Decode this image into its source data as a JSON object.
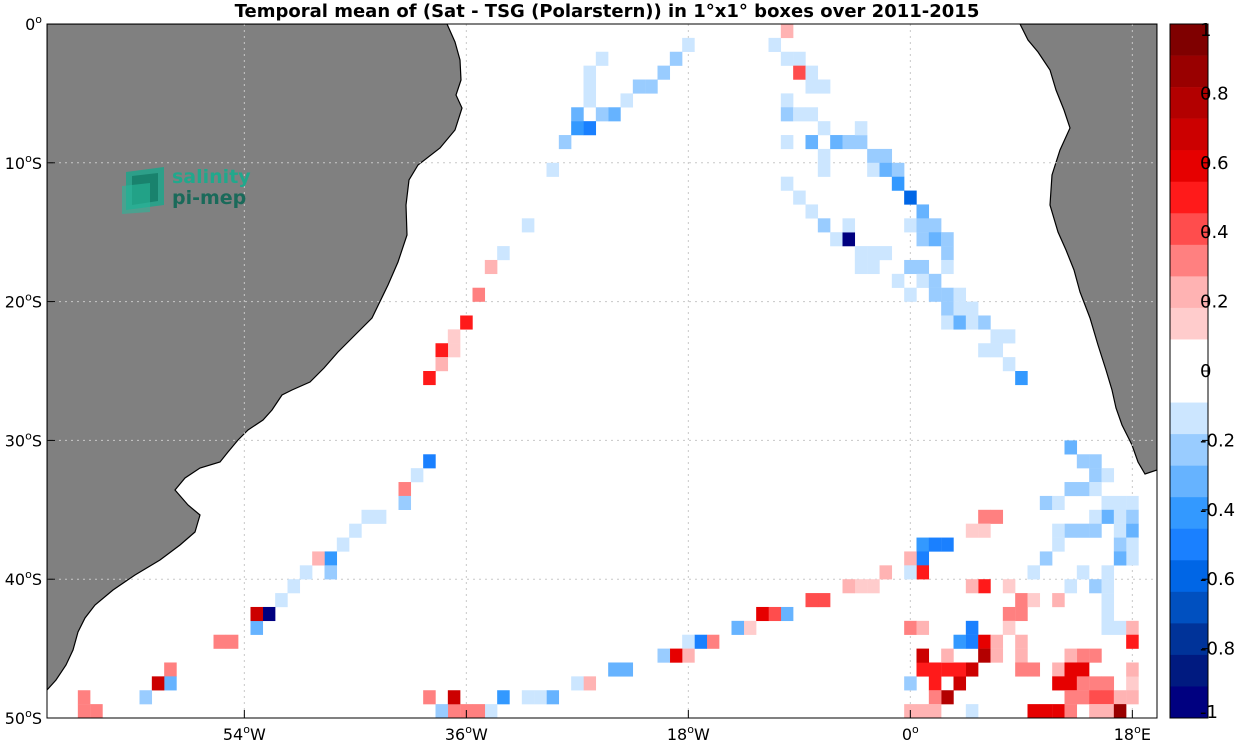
{
  "chart_data": {
    "type": "heatmap",
    "title": "Temporal mean of (Sat - TSG (Polarstern)) in 1°x1° boxes over 2011-2015",
    "xlabel": "",
    "ylabel": "",
    "xlim": [
      -70,
      20
    ],
    "ylim": [
      -50,
      0
    ],
    "grid": true,
    "x_ticks": [
      {
        "value": -54,
        "label": "54",
        "deg": "o",
        "hemi": "W"
      },
      {
        "value": -36,
        "label": "36",
        "deg": "o",
        "hemi": "W"
      },
      {
        "value": -18,
        "label": "18",
        "deg": "o",
        "hemi": "W"
      },
      {
        "value": 0,
        "label": "0",
        "deg": "o",
        "hemi": ""
      },
      {
        "value": 18,
        "label": "18",
        "deg": "o",
        "hemi": "E"
      }
    ],
    "y_ticks": [
      {
        "value": 0,
        "label": "0",
        "deg": "o",
        "hemi": ""
      },
      {
        "value": -10,
        "label": "10",
        "deg": "o",
        "hemi": "S"
      },
      {
        "value": -20,
        "label": "20",
        "deg": "o",
        "hemi": "S"
      },
      {
        "value": -30,
        "label": "30",
        "deg": "o",
        "hemi": "S"
      },
      {
        "value": -40,
        "label": "40",
        "deg": "o",
        "hemi": "S"
      },
      {
        "value": -50,
        "label": "50",
        "deg": "o",
        "hemi": "S"
      }
    ],
    "colorbar": {
      "range": [
        -1,
        1
      ],
      "ticks": [
        1,
        0.8,
        0.6,
        0.4,
        0.2,
        0,
        -0.2,
        -0.4,
        -0.6,
        -0.8,
        -1
      ],
      "tick_labels": [
        "1",
        "0.8",
        "0.6",
        "0.4",
        "0.2",
        "0",
        "-0.2",
        "-0.4",
        "-0.6",
        "-0.8",
        "-1"
      ],
      "colors_top_to_bottom": [
        "#7f0000",
        "#990000",
        "#b30000",
        "#cc0000",
        "#e60000",
        "#ff1a1a",
        "#ff4d4d",
        "#ff8080",
        "#ffb3b3",
        "#ffcccc",
        "#ffffff",
        "#ffffff",
        "#cce6ff",
        "#99ccff",
        "#66b3ff",
        "#3399ff",
        "#1a80ff",
        "#0066e6",
        "#0050c0",
        "#003399",
        "#001a80",
        "#000080"
      ]
    },
    "logo": {
      "line1": "salinity",
      "line2": "pi-mep"
    },
    "colors": {
      "land": "#808080",
      "coast": "#000000",
      "ocean": "#ffffff",
      "grid": "#c8c8c8"
    },
    "cells": [
      [
        -25,
        -2.5,
        -0.1
      ],
      [
        -26,
        -3.5,
        -0.1
      ],
      [
        -26,
        -4.5,
        -0.1
      ],
      [
        -26,
        -5.5,
        -0.1
      ],
      [
        -27,
        -6.5,
        -0.3
      ],
      [
        -28,
        -8.5,
        -0.2
      ],
      [
        -29,
        -10.5,
        -0.1
      ],
      [
        -31,
        -14.5,
        -0.1
      ],
      [
        -33,
        -16.5,
        -0.1
      ],
      [
        -34,
        -17.5,
        0.2
      ],
      [
        -35,
        -19.5,
        0.3
      ],
      [
        -36,
        -21.5,
        0.5
      ],
      [
        -37,
        -22.5,
        0.1
      ],
      [
        -37,
        -23.5,
        0.1
      ],
      [
        -38,
        -23.5,
        0.5
      ],
      [
        -38,
        -24.5,
        0.2
      ],
      [
        -39,
        -25.5,
        0.5
      ],
      [
        -39,
        -31.5,
        -0.5
      ],
      [
        -40,
        -32.5,
        -0.1
      ],
      [
        -41,
        -33.5,
        0.3
      ],
      [
        -41,
        -34.5,
        -0.2
      ],
      [
        -43,
        -35.5,
        -0.1
      ],
      [
        -44,
        -35.5,
        -0.1
      ],
      [
        -45,
        -36.5,
        -0.1
      ],
      [
        -46,
        -37.5,
        -0.1
      ],
      [
        -47,
        -38.5,
        -0.4
      ],
      [
        -48,
        -38.5,
        0.2
      ],
      [
        -47,
        -39.5,
        -0.2
      ],
      [
        -49,
        -39.5,
        -0.1
      ],
      [
        -50,
        -40.5,
        -0.1
      ],
      [
        -51,
        -41.5,
        -0.1
      ],
      [
        -52,
        -42.5,
        -1.0
      ],
      [
        -53,
        -43.5,
        -0.3
      ],
      [
        -53,
        -42.5,
        0.7
      ],
      [
        -55,
        -44.5,
        0.3
      ],
      [
        -56,
        -44.5,
        0.3
      ],
      [
        -60,
        -46.5,
        0.3
      ],
      [
        -60,
        -47.5,
        -0.3
      ],
      [
        -61,
        -47.5,
        0.7
      ],
      [
        -62,
        -48.5,
        -0.2
      ],
      [
        -66,
        -49.5,
        0.3
      ],
      [
        -67,
        -49.5,
        0.3
      ],
      [
        -67,
        -48.5,
        0.3
      ],
      [
        -18,
        -1.5,
        -0.1
      ],
      [
        -19,
        -2.5,
        -0.2
      ],
      [
        -20,
        -3.5,
        -0.2
      ],
      [
        -21,
        -4.5,
        -0.2
      ],
      [
        -22,
        -4.5,
        -0.2
      ],
      [
        -23,
        -5.5,
        -0.1
      ],
      [
        -24,
        -6.5,
        -0.3
      ],
      [
        -25,
        -6.5,
        -0.2
      ],
      [
        -26,
        -7.5,
        -0.5
      ],
      [
        -27,
        -7.5,
        -0.4
      ],
      [
        -10,
        -0.5,
        0.2
      ],
      [
        -11,
        -1.5,
        -0.1
      ],
      [
        -10,
        -2.5,
        -0.1
      ],
      [
        -9,
        -2.5,
        -0.1
      ],
      [
        -9,
        -3.5,
        0.4
      ],
      [
        -8,
        -4.5,
        -0.1
      ],
      [
        -8,
        -3.5,
        -0.1
      ],
      [
        -7,
        -4.5,
        -0.1
      ],
      [
        -10,
        -5.5,
        -0.1
      ],
      [
        -10,
        -6.5,
        -0.2
      ],
      [
        -9,
        -6.5,
        -0.1
      ],
      [
        -8,
        -6.5,
        -0.1
      ],
      [
        -7,
        -7.5,
        -0.1
      ],
      [
        -10,
        -8.5,
        -0.1
      ],
      [
        -8,
        -8.5,
        -0.3
      ],
      [
        -7,
        -9.5,
        -0.1
      ],
      [
        -7,
        -10.5,
        -0.1
      ],
      [
        -6,
        -8.5,
        -0.3
      ],
      [
        -5,
        -8.5,
        -0.2
      ],
      [
        -4,
        -8.5,
        -0.2
      ],
      [
        -4,
        -7.5,
        -0.1
      ],
      [
        -3,
        -9.5,
        -0.2
      ],
      [
        -3,
        -10.5,
        -0.1
      ],
      [
        -2,
        -9.5,
        -0.2
      ],
      [
        -2,
        -10.5,
        -0.3
      ],
      [
        -1,
        -10.5,
        -0.2
      ],
      [
        -1,
        -11.5,
        -0.4
      ],
      [
        0,
        -12.5,
        -0.6
      ],
      [
        -10,
        -11.5,
        -0.1
      ],
      [
        -9,
        -12.5,
        -0.1
      ],
      [
        -8,
        -13.5,
        -0.1
      ],
      [
        -7,
        -14.5,
        -0.2
      ],
      [
        -6,
        -15.5,
        -0.1
      ],
      [
        -5,
        -15.5,
        -1.0
      ],
      [
        -4,
        -16.5,
        -0.1
      ],
      [
        -3,
        -17.5,
        -0.1
      ],
      [
        -4,
        -17.5,
        -0.1
      ],
      [
        -5,
        -14.5,
        -0.1
      ],
      [
        0,
        -14.5,
        -0.1
      ],
      [
        1,
        -13.5,
        -0.3
      ],
      [
        1,
        -14.5,
        -0.2
      ],
      [
        1,
        -15.5,
        -0.2
      ],
      [
        2,
        -14.5,
        -0.2
      ],
      [
        2,
        -15.5,
        -0.3
      ],
      [
        3,
        -15.5,
        -0.2
      ],
      [
        3,
        -16.5,
        -0.2
      ],
      [
        1,
        -17.5,
        -0.2
      ],
      [
        1,
        -18.5,
        -0.1
      ],
      [
        2,
        -18.5,
        -0.2
      ],
      [
        2,
        -19.5,
        -0.2
      ],
      [
        3,
        -19.5,
        -0.2
      ],
      [
        3,
        -20.5,
        -0.2
      ],
      [
        4,
        -19.5,
        -0.1
      ],
      [
        4,
        -20.5,
        -0.1
      ],
      [
        3,
        -21.5,
        -0.1
      ],
      [
        4,
        -21.5,
        -0.3
      ],
      [
        5,
        -20.5,
        -0.1
      ],
      [
        5,
        -21.5,
        -0.1
      ],
      [
        6,
        -21.5,
        -0.2
      ],
      [
        7,
        -22.5,
        -0.1
      ],
      [
        8,
        -22.5,
        -0.1
      ],
      [
        6,
        -23.5,
        -0.1
      ],
      [
        7,
        -23.5,
        -0.1
      ],
      [
        8,
        -24.5,
        -0.1
      ],
      [
        9,
        -25.5,
        -0.4
      ],
      [
        0,
        -17.5,
        -0.2
      ],
      [
        -1,
        -18.5,
        -0.1
      ],
      [
        0,
        -19.5,
        -0.1
      ],
      [
        3,
        -17.5,
        -0.1
      ],
      [
        -2,
        -16.5,
        -0.1
      ],
      [
        -3,
        -16.5,
        -0.1
      ],
      [
        13,
        -30.5,
        -0.3
      ],
      [
        14,
        -31.5,
        -0.2
      ],
      [
        15,
        -31.5,
        -0.2
      ],
      [
        15,
        -32.5,
        -0.2
      ],
      [
        15,
        -33.5,
        -0.1
      ],
      [
        16,
        -32.5,
        -0.1
      ],
      [
        13,
        -33.5,
        -0.2
      ],
      [
        14,
        -33.5,
        -0.2
      ],
      [
        16,
        -34.5,
        -0.1
      ],
      [
        11,
        -34.5,
        -0.2
      ],
      [
        12,
        -34.5,
        -0.1
      ],
      [
        16,
        -35.5,
        -0.3
      ],
      [
        17,
        -34.5,
        -0.1
      ],
      [
        17,
        -35.5,
        -0.1
      ],
      [
        18,
        -34.5,
        -0.1
      ],
      [
        18,
        -35.5,
        -0.2
      ],
      [
        15,
        -35.5,
        -0.1
      ],
      [
        13,
        -36.5,
        -0.2
      ],
      [
        14,
        -36.5,
        -0.2
      ],
      [
        15,
        -36.5,
        -0.2
      ],
      [
        17,
        -36.5,
        -0.1
      ],
      [
        18,
        -36.5,
        -0.3
      ],
      [
        18,
        -37.5,
        -0.1
      ],
      [
        12,
        -36.5,
        -0.1
      ],
      [
        17,
        -37.5,
        -0.2
      ],
      [
        18,
        -38.5,
        -0.1
      ],
      [
        17,
        -38.5,
        -0.3
      ],
      [
        11,
        -38.5,
        -0.2
      ],
      [
        12,
        -37.5,
        -0.1
      ],
      [
        10,
        -39.5,
        -0.1
      ],
      [
        14,
        -39.5,
        -0.1
      ],
      [
        15,
        -40.5,
        -0.2
      ],
      [
        16,
        -39.5,
        -0.1
      ],
      [
        16,
        -40.5,
        -0.1
      ],
      [
        16,
        -41.5,
        -0.1
      ],
      [
        16,
        -42.5,
        -0.1
      ],
      [
        16,
        -43.5,
        -0.1
      ],
      [
        17,
        -43.5,
        -0.1
      ],
      [
        18,
        -43.5,
        0.2
      ],
      [
        18,
        -44.5,
        0.5
      ],
      [
        7,
        -35.5,
        0.3
      ],
      [
        6,
        -35.5,
        0.3
      ],
      [
        5,
        -36.5,
        0.1
      ],
      [
        6,
        -36.5,
        0.1
      ],
      [
        1,
        -37.5,
        -0.4
      ],
      [
        1,
        -38.5,
        -0.5
      ],
      [
        2,
        -37.5,
        -0.5
      ],
      [
        3,
        -37.5,
        -0.5
      ],
      [
        0,
        -38.5,
        0.2
      ],
      [
        1,
        -39.5,
        0.5
      ],
      [
        0,
        -39.5,
        -0.1
      ],
      [
        -2,
        -39.5,
        0.2
      ],
      [
        -3,
        -40.5,
        0.1
      ],
      [
        -4,
        -40.5,
        0.1
      ],
      [
        -5,
        -40.5,
        0.2
      ],
      [
        -7,
        -41.5,
        0.4
      ],
      [
        -8,
        -41.5,
        0.4
      ],
      [
        -10,
        -42.5,
        -0.3
      ],
      [
        -11,
        -42.5,
        0.4
      ],
      [
        -12,
        -42.5,
        0.6
      ],
      [
        -13,
        -43.5,
        0.1
      ],
      [
        -14,
        -43.5,
        -0.3
      ],
      [
        -16,
        -44.5,
        0.3
      ],
      [
        -17,
        -44.5,
        -0.5
      ],
      [
        -18,
        -44.5,
        -0.1
      ],
      [
        -18,
        -45.5,
        0.2
      ],
      [
        -19,
        -45.5,
        0.6
      ],
      [
        -20,
        -45.5,
        -0.2
      ],
      [
        -23,
        -46.5,
        -0.3
      ],
      [
        -24,
        -46.5,
        -0.3
      ],
      [
        -26,
        -47.5,
        0.2
      ],
      [
        -27,
        -47.5,
        -0.1
      ],
      [
        -29,
        -48.5,
        -0.3
      ],
      [
        -30,
        -48.5,
        -0.1
      ],
      [
        -31,
        -48.5,
        -0.1
      ],
      [
        -33,
        -48.5,
        -0.4
      ],
      [
        -34,
        -49.5,
        -0.1
      ],
      [
        -35,
        -49.5,
        0.3
      ],
      [
        -36,
        -49.5,
        0.3
      ],
      [
        -37,
        -49.5,
        0.3
      ],
      [
        -38,
        -49.5,
        -0.2
      ],
      [
        -37,
        -48.5,
        0.7
      ],
      [
        -39,
        -48.5,
        0.3
      ],
      [
        0,
        -43.5,
        0.3
      ],
      [
        1,
        -43.5,
        0.2
      ],
      [
        6,
        -40.5,
        0.5
      ],
      [
        8,
        -40.5,
        0.1
      ],
      [
        9,
        -41.5,
        0.3
      ],
      [
        10,
        -41.5,
        0.1
      ],
      [
        9,
        -42.5,
        0.3
      ],
      [
        8,
        -42.5,
        0.3
      ],
      [
        8,
        -43.5,
        0.1
      ],
      [
        5,
        -40.5,
        0.2
      ],
      [
        5,
        -43.5,
        -0.5
      ],
      [
        5,
        -44.5,
        -0.5
      ],
      [
        4,
        -44.5,
        -0.4
      ],
      [
        6,
        -44.5,
        0.6
      ],
      [
        6,
        -45.5,
        0.8
      ],
      [
        7,
        -44.5,
        0.2
      ],
      [
        7,
        -45.5,
        0.2
      ],
      [
        5,
        -46.5,
        0.7
      ],
      [
        4,
        -47.5,
        0.7
      ],
      [
        3,
        -48.5,
        0.8
      ],
      [
        2,
        -47.5,
        0.5
      ],
      [
        2,
        -46.5,
        0.5
      ],
      [
        1,
        -46.5,
        0.5
      ],
      [
        1,
        -45.5,
        0.7
      ],
      [
        2,
        -48.5,
        0.3
      ],
      [
        2,
        -49.5,
        0.2
      ],
      [
        1,
        -49.5,
        0.2
      ],
      [
        0,
        -49.5,
        0.2
      ],
      [
        0,
        -47.5,
        -0.2
      ],
      [
        3,
        -46.5,
        0.5
      ],
      [
        4,
        -46.5,
        0.5
      ],
      [
        3,
        -45.5,
        0.2
      ],
      [
        5,
        -49.5,
        -0.1
      ],
      [
        9,
        -45.5,
        0.2
      ],
      [
        9,
        -46.5,
        0.3
      ],
      [
        10,
        -46.5,
        0.3
      ],
      [
        9,
        -44.5,
        0.2
      ],
      [
        12,
        -41.5,
        0.2
      ],
      [
        13,
        -40.5,
        -0.1
      ],
      [
        14,
        -45.5,
        0.3
      ],
      [
        15,
        -45.5,
        0.3
      ],
      [
        13,
        -45.5,
        0.2
      ],
      [
        12,
        -46.5,
        0.2
      ],
      [
        13,
        -46.5,
        0.6
      ],
      [
        14,
        -46.5,
        0.6
      ],
      [
        13,
        -47.5,
        0.6
      ],
      [
        12,
        -47.5,
        0.6
      ],
      [
        14,
        -47.5,
        0.3
      ],
      [
        15,
        -47.5,
        0.3
      ],
      [
        16,
        -47.5,
        0.3
      ],
      [
        13,
        -48.5,
        0.3
      ],
      [
        14,
        -48.5,
        0.3
      ],
      [
        15,
        -48.5,
        0.4
      ],
      [
        16,
        -48.5,
        0.4
      ],
      [
        17,
        -48.5,
        0.2
      ],
      [
        10,
        -49.5,
        0.6
      ],
      [
        11,
        -49.5,
        0.6
      ],
      [
        12,
        -49.5,
        0.6
      ],
      [
        13,
        -49.5,
        0.3
      ],
      [
        15,
        -49.5,
        0.2
      ],
      [
        16,
        -49.5,
        0.2
      ],
      [
        17,
        -49.5,
        0.9
      ],
      [
        18,
        -47.5,
        0.1
      ],
      [
        18,
        -46.5,
        0.2
      ],
      [
        18,
        -48.5,
        0.2
      ]
    ]
  }
}
